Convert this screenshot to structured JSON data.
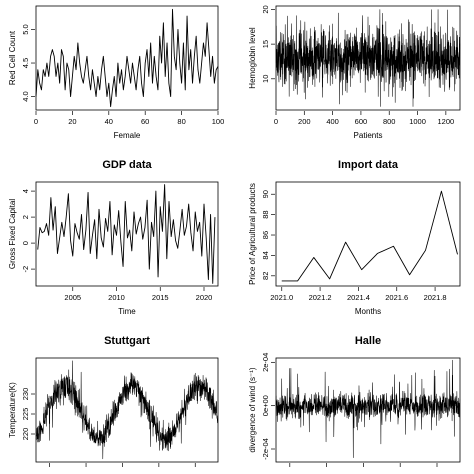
{
  "chart_data": [
    {
      "type": "line",
      "title": "",
      "xlabel": "Female",
      "ylabel": "Red Cell Count",
      "xlim": [
        0,
        100
      ],
      "ylim": [
        3.8,
        5.35
      ],
      "xticks": [
        0,
        20,
        40,
        60,
        80,
        100
      ],
      "xtick_labels": [
        "0",
        "20",
        "40",
        "60",
        "80",
        "100"
      ],
      "yticks": [
        4.0,
        4.5,
        5.0
      ],
      "ytick_labels": [
        "4.0",
        "4.5",
        "5.0"
      ],
      "series": [
        {
          "x": [
            0,
            1,
            2,
            3,
            4,
            5,
            6,
            7,
            8,
            9,
            10,
            11,
            12,
            13,
            14,
            15,
            16,
            17,
            18,
            19,
            20,
            21,
            22,
            23,
            24,
            25,
            26,
            27,
            28,
            29,
            30,
            31,
            32,
            33,
            34,
            35,
            36,
            37,
            38,
            39,
            40,
            41,
            42,
            43,
            44,
            45,
            46,
            47,
            48,
            49,
            50,
            51,
            52,
            53,
            54,
            55,
            56,
            57,
            58,
            59,
            60,
            61,
            62,
            63,
            64,
            65,
            66,
            67,
            68,
            69,
            70,
            71,
            72,
            73,
            74,
            75,
            76,
            77,
            78,
            79,
            80,
            81,
            82,
            83,
            84,
            85,
            86,
            87,
            88,
            89,
            90,
            91,
            92,
            93,
            94,
            95,
            96,
            97,
            98,
            99,
            100
          ],
          "values": [
            4.0,
            4.4,
            4.2,
            4.1,
            4.4,
            4.3,
            4.5,
            4.3,
            4.6,
            4.7,
            4.6,
            4.3,
            4.5,
            4.2,
            4.7,
            4.6,
            4.1,
            4.5,
            4.4,
            4.0,
            4.3,
            4.6,
            4.4,
            4.8,
            4.5,
            4.3,
            4.2,
            4.4,
            4.6,
            4.3,
            4.1,
            4.4,
            4.2,
            4.0,
            4.3,
            4.1,
            4.4,
            4.6,
            4.3,
            4.0,
            4.2,
            3.85,
            4.1,
            4.3,
            4.0,
            4.5,
            4.2,
            4.4,
            4.1,
            4.3,
            4.6,
            4.4,
            4.2,
            4.5,
            4.3,
            4.1,
            4.4,
            4.6,
            4.2,
            4.0,
            4.5,
            4.7,
            4.3,
            4.8,
            4.2,
            4.6,
            4.3,
            4.1,
            4.9,
            4.5,
            5.1,
            4.3,
            4.8,
            4.2,
            4.0,
            5.3,
            4.6,
            4.4,
            5.0,
            4.5,
            4.2,
            4.8,
            4.1,
            5.2,
            4.4,
            4.7,
            4.2,
            4.6,
            4.9,
            4.4,
            4.2,
            4.5,
            4.8,
            4.6,
            5.1,
            4.7,
            4.3,
            4.6,
            4.2,
            4.4,
            4.45
          ]
        }
      ]
    },
    {
      "type": "line",
      "title": "",
      "xlabel": "Patients",
      "ylabel": "Hemoglobin level",
      "xlim": [
        0,
        1300
      ],
      "ylim": [
        5.5,
        20.5
      ],
      "xticks": [
        0,
        200,
        400,
        600,
        800,
        1000,
        1200
      ],
      "xtick_labels": [
        "0",
        "200",
        "400",
        "600",
        "800",
        "1000",
        "1200"
      ],
      "yticks": [
        10,
        15,
        20
      ],
      "ytick_labels": [
        "10",
        "15",
        "20"
      ],
      "series": [
        {
          "n": 1300,
          "center": 13.0,
          "spread": 2.2,
          "min": 6.0,
          "max": 20.0
        }
      ]
    },
    {
      "type": "line",
      "title": "GDP data",
      "xlabel": "Time",
      "ylabel": "Gross Fixed Capital",
      "xlim": [
        2000.8,
        2021.6
      ],
      "ylim": [
        -3.3,
        4.7
      ],
      "xticks": [
        2005,
        2010,
        2015,
        2020
      ],
      "xtick_labels": [
        "2005",
        "2010",
        "2015",
        "2020"
      ],
      "yticks": [
        -2,
        0,
        2,
        4
      ],
      "ytick_labels": [
        "-2",
        "0",
        "2",
        "4"
      ],
      "series": [
        {
          "x_start": 2001.0,
          "x_step": 0.25,
          "values": [
            -0.5,
            1.2,
            0.8,
            0.9,
            1.5,
            0.6,
            3.5,
            1.0,
            2.8,
            -0.8,
            0.4,
            1.6,
            0.5,
            2.0,
            3.8,
            0.2,
            -1.0,
            1.5,
            0.8,
            0.3,
            2.2,
            -0.5,
            1.0,
            3.9,
            -0.8,
            0.6,
            1.8,
            -1.2,
            2.6,
            0.4,
            -0.3,
            1.9,
            0.9,
            3.2,
            -0.9,
            1.4,
            0.6,
            2.5,
            0.1,
            -1.8,
            3.2,
            0.4,
            1.0,
            -0.6,
            2.4,
            0.7,
            1.5,
            2.0,
            0.3,
            1.2,
            3.3,
            -2.0,
            1.6,
            0.5,
            4.0,
            -2.6,
            2.8,
            0.9,
            4.5,
            -1.2,
            3.2,
            0.5,
            1.8,
            0.2,
            -0.4,
            1.0,
            2.6,
            0.6,
            1.3,
            3.0,
            0.8,
            -0.6,
            2.4,
            0.9,
            1.6,
            -1.0,
            3.0,
            0.4,
            -2.8,
            2.2,
            -3.1,
            2.0
          ]
        }
      ]
    },
    {
      "type": "line",
      "title": "Import data",
      "xlabel": "Months",
      "ylabel": "Price of Agricultural products",
      "xlim": [
        2020.97,
        2021.93
      ],
      "ylim": [
        81.0,
        91.2
      ],
      "xticks": [
        2021.0,
        2021.2,
        2021.4,
        2021.6,
        2021.8
      ],
      "xtick_labels": [
        "2021.0",
        "2021.2",
        "2021.4",
        "2021.6",
        "2021.8"
      ],
      "yticks": [
        82,
        84,
        86,
        88,
        90
      ],
      "ytick_labels": [
        "82",
        "84",
        "86",
        "88",
        "90"
      ],
      "series": [
        {
          "x": [
            2021.0,
            2021.083,
            2021.167,
            2021.25,
            2021.333,
            2021.417,
            2021.5,
            2021.583,
            2021.667,
            2021.75,
            2021.833,
            2021.917
          ],
          "values": [
            81.5,
            81.5,
            83.8,
            81.7,
            85.3,
            82.6,
            84.2,
            84.9,
            82.1,
            84.5,
            90.3,
            84.1
          ]
        }
      ]
    },
    {
      "type": "line",
      "title": "Stuttgart",
      "xlabel": "",
      "ylabel": "Temperature(K)",
      "xlim": [
        0,
        1000
      ],
      "ylim": [
        213,
        239
      ],
      "xticks": [
        75,
        275,
        475,
        675,
        875
      ],
      "xtick_labels": [
        "",
        "",
        "",
        "",
        ""
      ],
      "yticks": [
        220,
        225,
        230
      ],
      "ytick_labels": [
        "220",
        "225",
        "230"
      ],
      "series": [
        {
          "n": 1000,
          "mean": 225.5,
          "amplitude": 6.5,
          "cycles": 2.7,
          "noise": 2.8
        }
      ]
    },
    {
      "type": "line",
      "title": "Halle",
      "xlabel": "",
      "ylabel": "divergence of wind (s⁻¹)",
      "xlim": [
        0,
        1000
      ],
      "ylim": [
        -0.00026,
        0.00022
      ],
      "xticks": [
        75,
        275,
        475,
        675,
        875
      ],
      "xtick_labels": [
        "",
        "",
        "",
        "",
        ""
      ],
      "yticks": [
        -0.0002,
        0,
        0.0002
      ],
      "ytick_labels": [
        "-2e-04",
        "0e+00",
        "2e-04"
      ],
      "series": [
        {
          "n": 1000,
          "noise": 3e-05,
          "spikes_max": 0.00021,
          "spikes_min": -0.00024
        }
      ]
    }
  ]
}
